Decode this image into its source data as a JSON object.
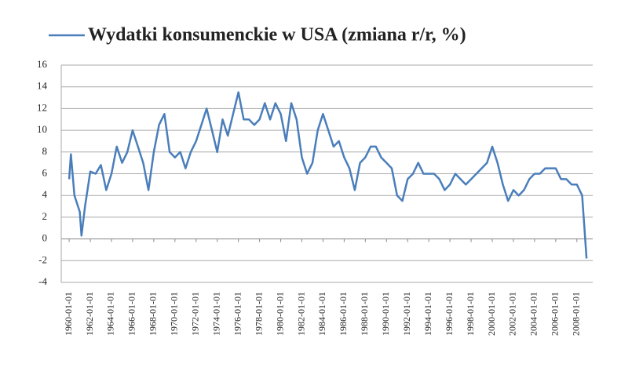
{
  "chart_data": {
    "type": "line",
    "x": [
      "1960-01-01",
      "1960-03-01",
      "1960-07-01",
      "1961-01-01",
      "1961-03-01",
      "1961-07-01",
      "1962-01-01",
      "1962-07-01",
      "1963-01-01",
      "1963-07-01",
      "1964-01-01",
      "1964-07-01",
      "1965-01-01",
      "1965-07-01",
      "1966-01-01",
      "1966-07-01",
      "1967-01-01",
      "1967-07-01",
      "1968-01-01",
      "1968-07-01",
      "1969-01-01",
      "1969-07-01",
      "1970-01-01",
      "1970-07-01",
      "1971-01-01",
      "1971-07-01",
      "1972-01-01",
      "1972-07-01",
      "1973-01-01",
      "1973-07-01",
      "1974-01-01",
      "1974-07-01",
      "1975-01-01",
      "1975-07-01",
      "1976-01-01",
      "1976-07-01",
      "1977-01-01",
      "1977-07-01",
      "1978-01-01",
      "1978-07-01",
      "1979-01-01",
      "1979-07-01",
      "1980-01-01",
      "1980-07-01",
      "1981-01-01",
      "1981-07-01",
      "1982-01-01",
      "1982-07-01",
      "1983-01-01",
      "1983-07-01",
      "1984-01-01",
      "1984-07-01",
      "1985-01-01",
      "1985-07-01",
      "1986-01-01",
      "1986-07-01",
      "1987-01-01",
      "1987-07-01",
      "1988-01-01",
      "1988-07-01",
      "1989-01-01",
      "1989-07-01",
      "1990-01-01",
      "1990-07-01",
      "1991-01-01",
      "1991-07-01",
      "1992-01-01",
      "1992-07-01",
      "1993-01-01",
      "1993-07-01",
      "1994-01-01",
      "1994-07-01",
      "1995-01-01",
      "1995-07-01",
      "1996-01-01",
      "1996-07-01",
      "1997-01-01",
      "1997-07-01",
      "1998-01-01",
      "1998-07-01",
      "1999-01-01",
      "1999-07-01",
      "2000-01-01",
      "2000-07-01",
      "2001-01-01",
      "2001-07-01",
      "2002-01-01",
      "2002-07-01",
      "2003-01-01",
      "2003-07-01",
      "2004-01-01",
      "2004-07-01",
      "2005-01-01",
      "2005-07-01",
      "2006-01-01",
      "2006-07-01",
      "2007-01-01",
      "2007-07-01",
      "2008-01-01",
      "2008-07-01",
      "2008-10-01",
      "2008-12-01"
    ],
    "series": [
      {
        "name": "Wydatki konsumenckie w USA (zmiana r/r, %)",
        "color": "#4a7ebb",
        "values": [
          5.5,
          7.8,
          4,
          2.5,
          0.3,
          3,
          6.2,
          6,
          6.8,
          4.5,
          6,
          8.5,
          7,
          8,
          10,
          8.5,
          7,
          4.5,
          8,
          10.5,
          11.5,
          8,
          7.5,
          8,
          6.5,
          8,
          9,
          10.5,
          12,
          10,
          8,
          11,
          9.5,
          11.5,
          13.5,
          11,
          11,
          10.5,
          11,
          12.5,
          11,
          12.5,
          11.5,
          9,
          12.5,
          11,
          7.5,
          6,
          7,
          10,
          11.5,
          10,
          8.5,
          9,
          7.5,
          6.5,
          4.5,
          7,
          7.5,
          8.5,
          8.5,
          7.5,
          7,
          6.5,
          4,
          3.5,
          5.5,
          6,
          7,
          6,
          6,
          6,
          5.5,
          4.5,
          5,
          6,
          5.5,
          5,
          5.5,
          6,
          6.5,
          7,
          8.5,
          7,
          5,
          3.5,
          4.5,
          4,
          4.5,
          5.5,
          6,
          6,
          6.5,
          6.5,
          6.5,
          5.5,
          5.5,
          5,
          5,
          4,
          0.5,
          -1.8
        ]
      }
    ],
    "xlim": [
      "1959-04-01",
      "2009-07-01"
    ],
    "xticks": [
      "1960-01-01",
      "1962-01-01",
      "1964-01-01",
      "1966-01-01",
      "1968-01-01",
      "1970-01-01",
      "1972-01-01",
      "1974-01-01",
      "1976-01-01",
      "1978-01-01",
      "1980-01-01",
      "1982-01-01",
      "1984-01-01",
      "1986-01-01",
      "1988-01-01",
      "1990-01-01",
      "1992-01-01",
      "1994-01-01",
      "1996-01-01",
      "1998-01-01",
      "2000-01-01",
      "2002-01-01",
      "2004-01-01",
      "2006-01-01",
      "2008-01-01"
    ],
    "ylim": [
      -4,
      16
    ],
    "yticks": [
      -4,
      -2,
      0,
      2,
      4,
      6,
      8,
      10,
      12,
      14,
      16
    ],
    "grid": true
  }
}
